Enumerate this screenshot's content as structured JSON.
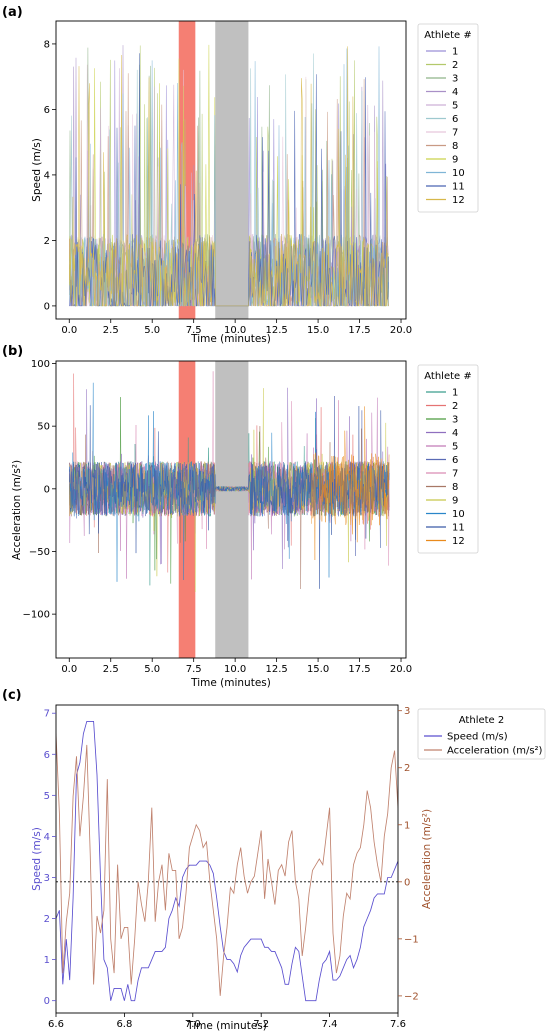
{
  "panels": {
    "a": {
      "label": "(a)"
    },
    "b": {
      "label": "(b)"
    },
    "c": {
      "label": "(c)"
    }
  },
  "chart_data": [
    {
      "id": "a",
      "type": "line",
      "title": "",
      "xlabel": "Time (minutes)",
      "ylabel": "Speed (m/s)",
      "xlim": [
        -0.8,
        20.3
      ],
      "ylim": [
        -0.4,
        8.7
      ],
      "xticks": [
        "0.0",
        "2.5",
        "5.0",
        "7.5",
        "10.0",
        "12.5",
        "15.0",
        "17.5",
        "20.0"
      ],
      "yticks": [
        "0",
        "2",
        "4",
        "6",
        "8"
      ],
      "shaded_regions": [
        {
          "x0": 6.6,
          "x1": 7.6,
          "color": "#f4786c"
        },
        {
          "x0": 8.8,
          "x1": 10.8,
          "color": "#bdbdbd"
        }
      ],
      "legend": {
        "title": "Athlete #",
        "position": "outside-right"
      },
      "series": [
        {
          "name": "1",
          "color": "#9b8fd6"
        },
        {
          "name": "2",
          "color": "#b3c96b"
        },
        {
          "name": "3",
          "color": "#8fb389"
        },
        {
          "name": "4",
          "color": "#a990c7"
        },
        {
          "name": "5",
          "color": "#cdb1d8"
        },
        {
          "name": "6",
          "color": "#9ec9cf"
        },
        {
          "name": "7",
          "color": "#e8c6dc"
        },
        {
          "name": "8",
          "color": "#c99a84"
        },
        {
          "name": "9",
          "color": "#cbd24a"
        },
        {
          "name": "10",
          "color": "#7fb5d6"
        },
        {
          "name": "11",
          "color": "#4a64b2"
        },
        {
          "name": "12",
          "color": "#d7b84b"
        }
      ],
      "data_summary": "12 dense speed traces between 0 and about 8.3 m/s over 0 to 19.3 minutes; no data during the gray interval 8.8 to 10.8 minutes"
    },
    {
      "id": "b",
      "type": "line",
      "title": "",
      "xlabel": "Time (minutes)",
      "ylabel": "Acceleration (m/s²)",
      "xlim": [
        -0.8,
        20.3
      ],
      "ylim": [
        -135,
        102
      ],
      "xticks": [
        "0.0",
        "2.5",
        "5.0",
        "7.5",
        "10.0",
        "12.5",
        "15.0",
        "17.5",
        "20.0"
      ],
      "yticks": [
        "−100",
        "−50",
        "0",
        "50",
        "100"
      ],
      "shaded_regions": [
        {
          "x0": 6.6,
          "x1": 7.6,
          "color": "#f4786c"
        },
        {
          "x0": 8.8,
          "x1": 10.8,
          "color": "#bdbdbd"
        }
      ],
      "legend": {
        "title": "Athlete #",
        "position": "outside-right"
      },
      "series": [
        {
          "name": "1",
          "color": "#3b9e8e"
        },
        {
          "name": "2",
          "color": "#e57373"
        },
        {
          "name": "3",
          "color": "#4a9a3e"
        },
        {
          "name": "4",
          "color": "#8f6fbf"
        },
        {
          "name": "5",
          "color": "#c27bb8"
        },
        {
          "name": "6",
          "color": "#5a6bb5"
        },
        {
          "name": "7",
          "color": "#d98cb5"
        },
        {
          "name": "8",
          "color": "#a87866"
        },
        {
          "name": "9",
          "color": "#c8c84a"
        },
        {
          "name": "10",
          "color": "#2a86c9"
        },
        {
          "name": "11",
          "color": "#3a5ba8"
        },
        {
          "name": "12",
          "color": "#e98a1c"
        }
      ],
      "data_summary": "12 dense acceleration traces mostly within ±40 m/s² with spikes to about +95 and −125 m/s² over 0 to 19.3 minutes"
    },
    {
      "id": "c",
      "type": "line",
      "title": "",
      "xlabel": "Time (minutes)",
      "ylabel": "Speed (m/s)",
      "y2label": "Acceleration (m/s²)",
      "xlim": [
        6.6,
        7.6
      ],
      "ylim": [
        -0.3,
        7.2
      ],
      "y2lim": [
        -2.3,
        3.1
      ],
      "xticks": [
        "6.6",
        "6.8",
        "7.0",
        "7.2",
        "7.4",
        "7.6"
      ],
      "yticks": [
        "0",
        "1",
        "2",
        "3",
        "4",
        "5",
        "6",
        "7"
      ],
      "y2ticks": [
        "−2",
        "−1",
        "0",
        "1",
        "2",
        "3"
      ],
      "reference_line": {
        "axis": "y2",
        "value": 0,
        "style": "dotted"
      },
      "legend": {
        "title": "Athlete 2",
        "position": "outside-right"
      },
      "x": [
        6.6,
        6.61,
        6.62,
        6.63,
        6.64,
        6.65,
        6.66,
        6.67,
        6.68,
        6.69,
        6.7,
        6.71,
        6.72,
        6.73,
        6.74,
        6.75,
        6.76,
        6.77,
        6.78,
        6.79,
        6.8,
        6.81,
        6.82,
        6.83,
        6.84,
        6.85,
        6.86,
        6.87,
        6.88,
        6.89,
        6.9,
        6.91,
        6.92,
        6.93,
        6.94,
        6.95,
        6.96,
        6.97,
        6.98,
        6.99,
        7.0,
        7.01,
        7.02,
        7.03,
        7.04,
        7.05,
        7.06,
        7.07,
        7.08,
        7.09,
        7.1,
        7.11,
        7.12,
        7.13,
        7.14,
        7.15,
        7.16,
        7.17,
        7.18,
        7.19,
        7.2,
        7.21,
        7.22,
        7.23,
        7.24,
        7.25,
        7.26,
        7.27,
        7.28,
        7.29,
        7.3,
        7.31,
        7.32,
        7.33,
        7.34,
        7.35,
        7.36,
        7.37,
        7.38,
        7.39,
        7.4,
        7.41,
        7.42,
        7.43,
        7.44,
        7.45,
        7.46,
        7.47,
        7.48,
        7.49,
        7.5,
        7.51,
        7.52,
        7.53,
        7.54,
        7.55,
        7.56,
        7.57,
        7.58,
        7.59,
        7.6
      ],
      "series": [
        {
          "name": "Speed (m/s)",
          "axis": "y",
          "color": "#5a4fcf",
          "values": [
            2.0,
            2.2,
            0.4,
            1.5,
            0.5,
            2.5,
            5.5,
            5.8,
            6.5,
            6.8,
            6.8,
            6.8,
            5.5,
            3.0,
            1.0,
            0.8,
            0.0,
            0.3,
            0.3,
            0.3,
            0.0,
            0.4,
            0.0,
            0.0,
            0.5,
            0.8,
            0.8,
            0.8,
            1.0,
            1.2,
            1.2,
            1.2,
            1.3,
            2.0,
            2.2,
            2.5,
            2.3,
            3.0,
            3.2,
            3.3,
            3.3,
            3.3,
            3.4,
            3.4,
            3.4,
            3.3,
            3.1,
            2.5,
            1.8,
            1.2,
            1.0,
            1.0,
            0.9,
            0.7,
            1.1,
            1.3,
            1.4,
            1.5,
            1.5,
            1.5,
            1.5,
            1.3,
            1.3,
            1.2,
            1.2,
            1.0,
            0.8,
            0.4,
            0.4,
            0.9,
            1.3,
            1.2,
            0.6,
            0.0,
            0.0,
            0.0,
            0.0,
            0.5,
            0.9,
            1.0,
            1.2,
            0.5,
            0.5,
            0.6,
            0.8,
            1.0,
            1.1,
            0.8,
            1.0,
            1.3,
            1.8,
            2.0,
            2.2,
            2.5,
            2.6,
            2.6,
            2.6,
            3.0,
            3.0,
            3.2,
            3.4
          ]
        },
        {
          "name": "Acceleration (m/s²)",
          "axis": "y2",
          "color": "#c0826e",
          "values": [
            2.6,
            1.2,
            -1.6,
            -0.7,
            -0.2,
            1.5,
            2.2,
            0.8,
            1.5,
            2.4,
            0.5,
            -1.8,
            -0.6,
            -0.9,
            -0.5,
            1.8,
            -1.0,
            -1.6,
            0.3,
            -1.0,
            -0.8,
            -0.8,
            -1.8,
            -1.0,
            0.0,
            -0.4,
            -0.7,
            0.0,
            1.3,
            -0.7,
            0.0,
            0.3,
            -0.5,
            0.5,
            0.2,
            0.2,
            -1.0,
            -0.8,
            -0.2,
            0.6,
            0.8,
            1.0,
            0.9,
            0.6,
            0.7,
            0.0,
            -0.5,
            -1.0,
            -2.0,
            -1.3,
            -0.8,
            -0.1,
            -0.2,
            0.3,
            0.6,
            0.1,
            -0.2,
            0.0,
            0.1,
            0.5,
            0.9,
            -0.3,
            0.4,
            0.0,
            -0.4,
            0.2,
            0.3,
            0.1,
            0.7,
            0.9,
            0.0,
            -0.3,
            -1.3,
            -0.8,
            -0.2,
            0.2,
            0.3,
            0.4,
            0.3,
            0.8,
            1.3,
            -0.9,
            -1.6,
            -1.3,
            -0.6,
            -0.2,
            -0.3,
            0.3,
            0.5,
            0.6,
            1.0,
            1.6,
            1.3,
            0.7,
            0.3,
            0.0,
            0.8,
            1.2,
            2.0,
            2.3,
            1.3
          ]
        }
      ]
    }
  ]
}
